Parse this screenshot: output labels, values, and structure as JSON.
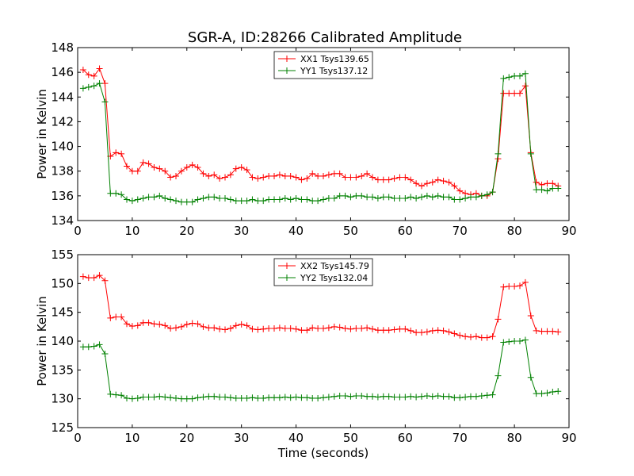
{
  "chart_data": [
    {
      "type": "line",
      "title": "SGR-A, ID:28266 Calibrated Amplitude",
      "xlabel": "",
      "ylabel": "Power in Kelvin",
      "xlim": [
        0,
        90
      ],
      "ylim": [
        134,
        148
      ],
      "xticks": [
        0,
        10,
        20,
        30,
        40,
        50,
        60,
        70,
        80,
        90
      ],
      "yticks": [
        134,
        136,
        138,
        140,
        142,
        144,
        146,
        148
      ],
      "grid": false,
      "legend_position": "top-center",
      "x": [
        1,
        2,
        3,
        4,
        5,
        6,
        7,
        8,
        9,
        10,
        11,
        12,
        13,
        14,
        15,
        16,
        17,
        18,
        19,
        20,
        21,
        22,
        23,
        24,
        25,
        26,
        27,
        28,
        29,
        30,
        31,
        32,
        33,
        34,
        35,
        36,
        37,
        38,
        39,
        40,
        41,
        42,
        43,
        44,
        45,
        46,
        47,
        48,
        49,
        50,
        51,
        52,
        53,
        54,
        55,
        56,
        57,
        58,
        59,
        60,
        61,
        62,
        63,
        64,
        65,
        66,
        67,
        68,
        69,
        70,
        71,
        72,
        73,
        74,
        75,
        76,
        77,
        78,
        79,
        80,
        81,
        82,
        83,
        84,
        85,
        86,
        87,
        88
      ],
      "series": [
        {
          "name": "XX1 Tsys139.65",
          "color": "#ff0000",
          "values": [
            146.2,
            145.8,
            145.7,
            146.3,
            145.1,
            139.2,
            139.5,
            139.4,
            138.4,
            138.0,
            138.0,
            138.7,
            138.6,
            138.3,
            138.2,
            138.0,
            137.5,
            137.6,
            138.0,
            138.3,
            138.5,
            138.3,
            137.8,
            137.6,
            137.7,
            137.4,
            137.5,
            137.7,
            138.2,
            138.3,
            138.1,
            137.5,
            137.4,
            137.5,
            137.6,
            137.6,
            137.7,
            137.6,
            137.6,
            137.5,
            137.3,
            137.4,
            137.8,
            137.6,
            137.6,
            137.7,
            137.8,
            137.8,
            137.5,
            137.5,
            137.5,
            137.6,
            137.8,
            137.5,
            137.3,
            137.3,
            137.3,
            137.4,
            137.5,
            137.5,
            137.3,
            137.0,
            136.8,
            137.0,
            137.1,
            137.3,
            137.2,
            137.1,
            136.8,
            136.4,
            136.2,
            136.1,
            136.2,
            136.0,
            136.0,
            136.3,
            139.0,
            144.3,
            144.3,
            144.3,
            144.3,
            144.9,
            139.5,
            137.1,
            136.9,
            137.0,
            137.0,
            136.8
          ]
        },
        {
          "name": "YY1 Tsys137.12",
          "color": "#008000",
          "values": [
            144.7,
            144.8,
            144.9,
            145.1,
            143.6,
            136.2,
            136.2,
            136.1,
            135.7,
            135.6,
            135.7,
            135.8,
            135.9,
            135.9,
            136.0,
            135.8,
            135.7,
            135.6,
            135.5,
            135.5,
            135.5,
            135.7,
            135.8,
            135.9,
            135.9,
            135.8,
            135.8,
            135.7,
            135.6,
            135.6,
            135.6,
            135.7,
            135.6,
            135.6,
            135.7,
            135.7,
            135.7,
            135.8,
            135.7,
            135.8,
            135.7,
            135.7,
            135.6,
            135.6,
            135.7,
            135.8,
            135.8,
            136.0,
            136.0,
            135.9,
            136.0,
            136.0,
            135.9,
            135.9,
            135.8,
            135.9,
            135.9,
            135.8,
            135.8,
            135.8,
            135.9,
            135.8,
            135.9,
            136.0,
            135.9,
            136.0,
            135.9,
            135.9,
            135.7,
            135.7,
            135.8,
            135.9,
            135.9,
            136.0,
            136.1,
            136.3,
            139.4,
            145.5,
            145.6,
            145.7,
            145.7,
            145.9,
            139.4,
            136.5,
            136.5,
            136.4,
            136.6,
            136.6
          ]
        }
      ]
    },
    {
      "type": "line",
      "title": "",
      "xlabel": "Time (seconds)",
      "ylabel": "Power in Kelvin",
      "xlim": [
        0,
        90
      ],
      "ylim": [
        125,
        155
      ],
      "xticks": [
        0,
        10,
        20,
        30,
        40,
        50,
        60,
        70,
        80,
        90
      ],
      "yticks": [
        125,
        130,
        135,
        140,
        145,
        150,
        155
      ],
      "grid": false,
      "legend_position": "top-center",
      "x": [
        1,
        2,
        3,
        4,
        5,
        6,
        7,
        8,
        9,
        10,
        11,
        12,
        13,
        14,
        15,
        16,
        17,
        18,
        19,
        20,
        21,
        22,
        23,
        24,
        25,
        26,
        27,
        28,
        29,
        30,
        31,
        32,
        33,
        34,
        35,
        36,
        37,
        38,
        39,
        40,
        41,
        42,
        43,
        44,
        45,
        46,
        47,
        48,
        49,
        50,
        51,
        52,
        53,
        54,
        55,
        56,
        57,
        58,
        59,
        60,
        61,
        62,
        63,
        64,
        65,
        66,
        67,
        68,
        69,
        70,
        71,
        72,
        73,
        74,
        75,
        76,
        77,
        78,
        79,
        80,
        81,
        82,
        83,
        84,
        85,
        86,
        87,
        88
      ],
      "series": [
        {
          "name": "XX2 Tsys145.79",
          "color": "#ff0000",
          "values": [
            151.2,
            151.0,
            151.0,
            151.4,
            150.5,
            144.0,
            144.2,
            144.2,
            143.0,
            142.6,
            142.7,
            143.2,
            143.2,
            143.0,
            142.9,
            142.7,
            142.2,
            142.3,
            142.5,
            142.9,
            143.1,
            143.0,
            142.5,
            142.3,
            142.3,
            142.1,
            142.0,
            142.2,
            142.7,
            142.9,
            142.7,
            142.1,
            142.0,
            142.1,
            142.2,
            142.2,
            142.3,
            142.2,
            142.2,
            142.1,
            141.9,
            141.9,
            142.3,
            142.2,
            142.2,
            142.3,
            142.5,
            142.4,
            142.2,
            142.1,
            142.2,
            142.2,
            142.3,
            142.1,
            141.9,
            141.9,
            141.9,
            142.0,
            142.1,
            142.1,
            141.8,
            141.5,
            141.5,
            141.6,
            141.8,
            141.9,
            141.8,
            141.6,
            141.3,
            141.0,
            140.8,
            140.7,
            140.8,
            140.6,
            140.6,
            140.8,
            143.8,
            149.4,
            149.5,
            149.5,
            149.6,
            150.2,
            144.4,
            141.8,
            141.7,
            141.7,
            141.7,
            141.6
          ]
        },
        {
          "name": "YY2 Tsys132.04",
          "color": "#008000",
          "values": [
            139.0,
            139.0,
            139.1,
            139.4,
            137.8,
            130.8,
            130.7,
            130.6,
            130.1,
            130.0,
            130.1,
            130.3,
            130.3,
            130.3,
            130.4,
            130.3,
            130.2,
            130.1,
            130.0,
            130.0,
            130.0,
            130.2,
            130.3,
            130.4,
            130.4,
            130.3,
            130.3,
            130.2,
            130.1,
            130.1,
            130.1,
            130.2,
            130.1,
            130.1,
            130.2,
            130.2,
            130.2,
            130.3,
            130.2,
            130.3,
            130.2,
            130.2,
            130.1,
            130.1,
            130.2,
            130.3,
            130.4,
            130.5,
            130.5,
            130.4,
            130.5,
            130.5,
            130.4,
            130.4,
            130.3,
            130.4,
            130.4,
            130.3,
            130.3,
            130.3,
            130.4,
            130.3,
            130.4,
            130.5,
            130.4,
            130.5,
            130.4,
            130.4,
            130.2,
            130.2,
            130.3,
            130.4,
            130.4,
            130.5,
            130.6,
            130.7,
            134.0,
            139.8,
            139.9,
            140.0,
            140.0,
            140.2,
            133.7,
            130.9,
            130.9,
            131.0,
            131.2,
            131.3
          ]
        }
      ]
    }
  ]
}
